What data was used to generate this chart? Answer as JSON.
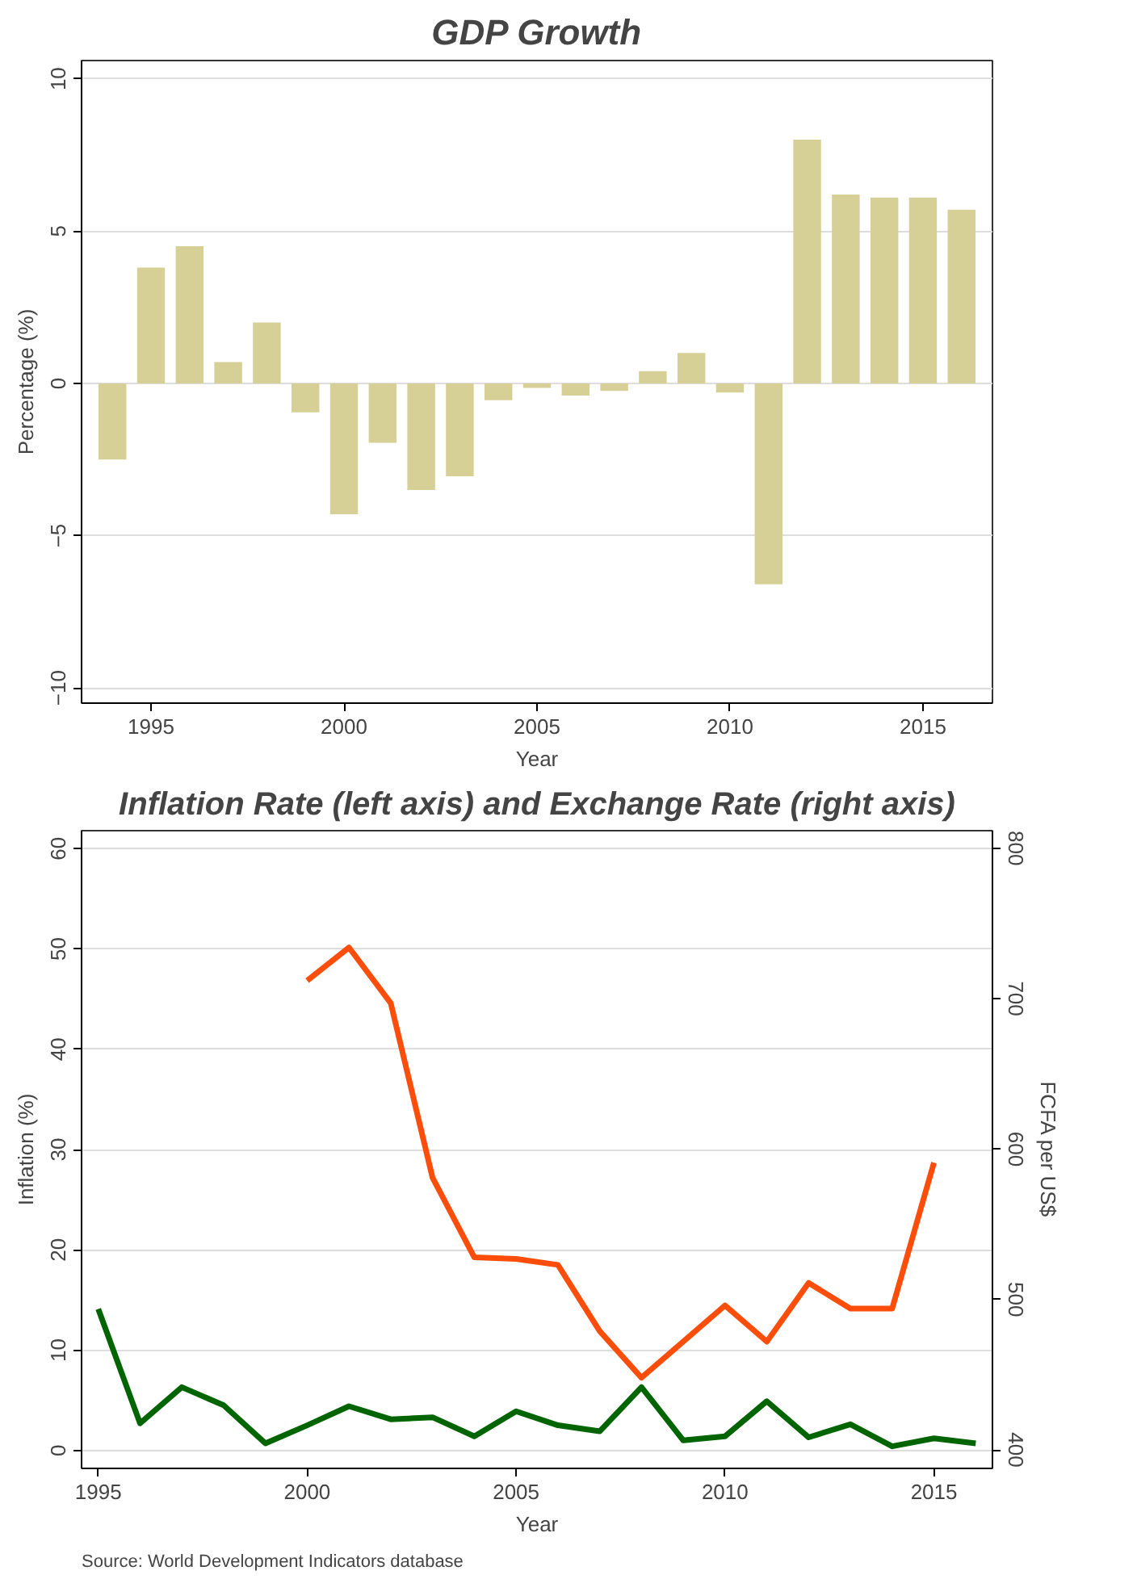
{
  "chart_data": [
    {
      "type": "bar",
      "title": "GDP Growth",
      "xlabel": "Year",
      "ylabel": "Percentage (%)",
      "x": [
        1994,
        1995,
        1996,
        1997,
        1998,
        1999,
        2000,
        2001,
        2002,
        2003,
        2004,
        2005,
        2006,
        2007,
        2008,
        2009,
        2010,
        2011,
        2012,
        2013,
        2014,
        2015,
        2016
      ],
      "values": [
        -2.5,
        3.8,
        4.5,
        0.7,
        2.0,
        -0.95,
        -4.3,
        -1.95,
        -3.5,
        -3.05,
        -0.55,
        -0.15,
        -0.4,
        -0.25,
        0.4,
        1.0,
        -0.3,
        -6.6,
        8.0,
        6.2,
        6.1,
        6.1,
        5.7
      ],
      "color": "#d6cf96",
      "xlim": [
        1993.2,
        2016.8
      ],
      "xticks": [
        1995,
        2000,
        2005,
        2010,
        2015
      ],
      "ylim": [
        -10.5,
        10.6
      ],
      "yticks": [
        -10,
        -5,
        0,
        5,
        10
      ],
      "grid": "y"
    },
    {
      "type": "line",
      "title": "Inflation Rate (left axis) and Exchange Rate (right axis)",
      "xlabel": "Year",
      "ylabel": "Inflation (%)",
      "y2label": "FCFA per US$",
      "annotations": [
        "Source: World Development Indicators database"
      ],
      "series": [
        {
          "color": "#006400",
          "x": [
            1995,
            1996,
            1997,
            1998,
            1999,
            2000,
            2001,
            2002,
            2003,
            2004,
            2005,
            2006,
            2007,
            2008,
            2009,
            2010,
            2011,
            2012,
            2013,
            2014,
            2015,
            2016
          ],
          "values": [
            14.1,
            2.7,
            6.3,
            4.5,
            0.7,
            2.5,
            4.4,
            3.1,
            3.3,
            1.4,
            3.9,
            2.5,
            1.9,
            6.3,
            1.0,
            1.4,
            4.9,
            1.3,
            2.6,
            0.4,
            1.2,
            0.7
          ]
        },
        {
          "color": "#fc4e0a",
          "axis": "y2",
          "x": [
            2000,
            2001,
            2002,
            2003,
            2004,
            2005,
            2006,
            2007,
            2008,
            2009,
            2010,
            2011,
            2012,
            2013,
            2014,
            2015
          ],
          "values": [
            712,
            734,
            697,
            581,
            528,
            527,
            523,
            479,
            448,
            472,
            496,
            472,
            511,
            494,
            494,
            591
          ]
        }
      ],
      "xlim": [
        1994.6,
        2016.4
      ],
      "xticks": [
        1995,
        2000,
        2005,
        2010,
        2015
      ],
      "ylim": [
        -1.8,
        61.8
      ],
      "yticks": [
        0,
        10,
        20,
        30,
        40,
        50,
        60
      ],
      "y2lim": [
        387.7,
        811.7
      ],
      "y2ticks": [
        400,
        500,
        600,
        700,
        800
      ],
      "grid": "y"
    }
  ]
}
